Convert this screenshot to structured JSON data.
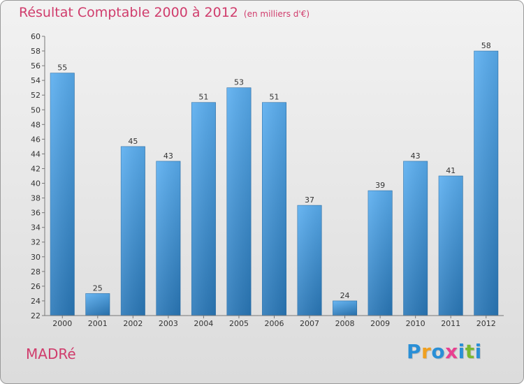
{
  "page": {
    "title": "Résultat Comptable 2000 à 2012",
    "subtitle": "(en milliers d'€)",
    "commune": "MADRé",
    "logo_letters": [
      {
        "char": "P",
        "color": "#2a8fd6"
      },
      {
        "char": "r",
        "color": "#f0a020"
      },
      {
        "char": "o",
        "color": "#2a8fd6"
      },
      {
        "char": "x",
        "color": "#e84090"
      },
      {
        "char": "i",
        "color": "#2a8fd6"
      },
      {
        "char": "t",
        "color": "#7ab830"
      },
      {
        "char": "i",
        "color": "#2a8fd6"
      }
    ]
  },
  "chart_data": {
    "type": "bar",
    "title": "Résultat Comptable 2000 à 2012",
    "subtitle": "(en milliers d'€)",
    "xlabel": "",
    "ylabel": "",
    "categories": [
      "2000",
      "2001",
      "2002",
      "2003",
      "2004",
      "2005",
      "2006",
      "2007",
      "2008",
      "2009",
      "2010",
      "2011",
      "2012"
    ],
    "values": [
      55,
      25,
      45,
      43,
      51,
      53,
      51,
      37,
      24,
      39,
      43,
      41,
      58
    ],
    "ylim": [
      22,
      60
    ],
    "ytick_step": 2,
    "grid": false,
    "bar_color": "#3a8fd0"
  }
}
